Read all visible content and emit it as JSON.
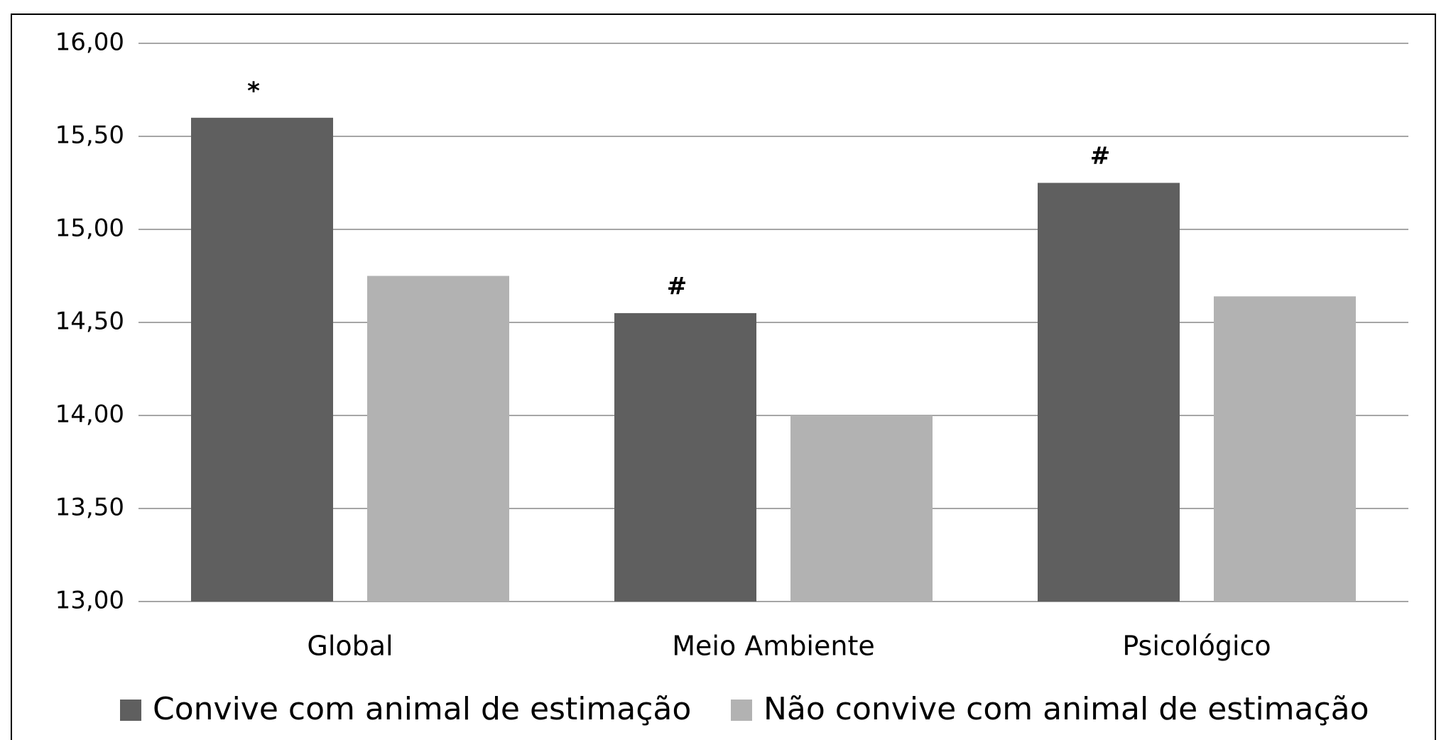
{
  "chart_data": {
    "type": "bar",
    "categories": [
      "Global",
      "Meio Ambiente",
      "Psicológico"
    ],
    "series": [
      {
        "name": "Convive com animal de estimação",
        "color": "#5f5f5f",
        "values": [
          15.6,
          14.55,
          15.25
        ],
        "annotations": [
          "*",
          "#",
          "#"
        ]
      },
      {
        "name": "Não convive com animal de estimação",
        "color": "#b2b2b2",
        "values": [
          14.75,
          14.0,
          14.64
        ]
      }
    ],
    "ylim": [
      13,
      16
    ],
    "yticks": [
      {
        "value": 13,
        "label": "13,00"
      },
      {
        "value": 13.5,
        "label": "13,50"
      },
      {
        "value": 14,
        "label": "14,00"
      },
      {
        "value": 14.5,
        "label": "14,50"
      },
      {
        "value": 15,
        "label": "15,00"
      },
      {
        "value": 15.5,
        "label": "15,50"
      },
      {
        "value": 16,
        "label": "16,00"
      }
    ],
    "grid": true,
    "legend": "bottom"
  }
}
